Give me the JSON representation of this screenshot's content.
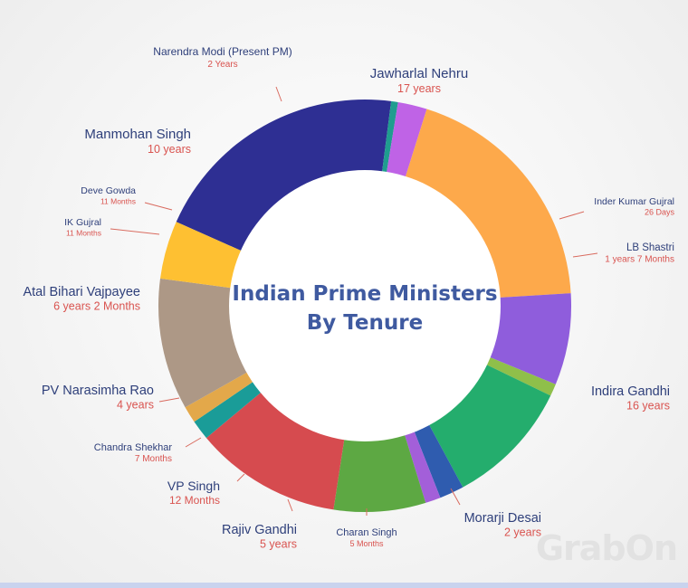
{
  "chart_data": {
    "type": "pie",
    "donut": true,
    "title_lines": [
      "Indian Prime Ministers",
      "By Tenure"
    ],
    "slices": [
      {
        "name": "Jawharlal Nehru",
        "tenure": "17 years",
        "value": 17,
        "color": "#2e2f93"
      },
      {
        "name": "Inder Kumar Gujral",
        "tenure": "26 Days",
        "value": 0.45,
        "color": "#1f9d8f"
      },
      {
        "name": "LB Shastri",
        "tenure": "1 years 7 Months",
        "value": 1.9,
        "color": "#bf63e6"
      },
      {
        "name": "Indira Gandhi",
        "tenure": "16 years",
        "value": 16,
        "color": "#fda94b"
      },
      {
        "name": "Morarji Desai",
        "tenure": "2 years",
        "value": 6,
        "color": "#8f5ddc"
      },
      {
        "name": "Charan Singh",
        "tenure": "5 Months",
        "value": 0.8,
        "color": "#8fbf4a"
      },
      {
        "name": "Rajiv Gandhi",
        "tenure": "5 years",
        "value": 8.3,
        "color": "#24ad6d"
      },
      {
        "name": "VP Singh",
        "tenure": "12 Months",
        "value": 1.6,
        "color": "#2f5caf"
      },
      {
        "name": "Chandra Shekhar",
        "tenure": "7 Months",
        "value": 1.0,
        "color": "#a35fd9"
      },
      {
        "name": "PV Narasimha Rao",
        "tenure": "4 years",
        "value": 6,
        "color": "#5da843"
      },
      {
        "name": "Atal Bihari Vajpayee",
        "tenure": "6 years 2 Months",
        "value": 9.6,
        "color": "#d64b4f"
      },
      {
        "name": "IK Gujral",
        "tenure": "11 Months",
        "value": 1.3,
        "color": "#1a9c98"
      },
      {
        "name": "Deve Gowda",
        "tenure": "11 Months",
        "value": 1.1,
        "color": "#e3a84a"
      },
      {
        "name": "Manmohan Singh",
        "tenure": "10 years",
        "value": 8.6,
        "color": "#ad9886"
      },
      {
        "name": "Narendra Modi (Present PM)",
        "tenure": "2 Years",
        "value": 3.8,
        "color": "#fec032"
      }
    ]
  },
  "watermark": "GrabOn"
}
